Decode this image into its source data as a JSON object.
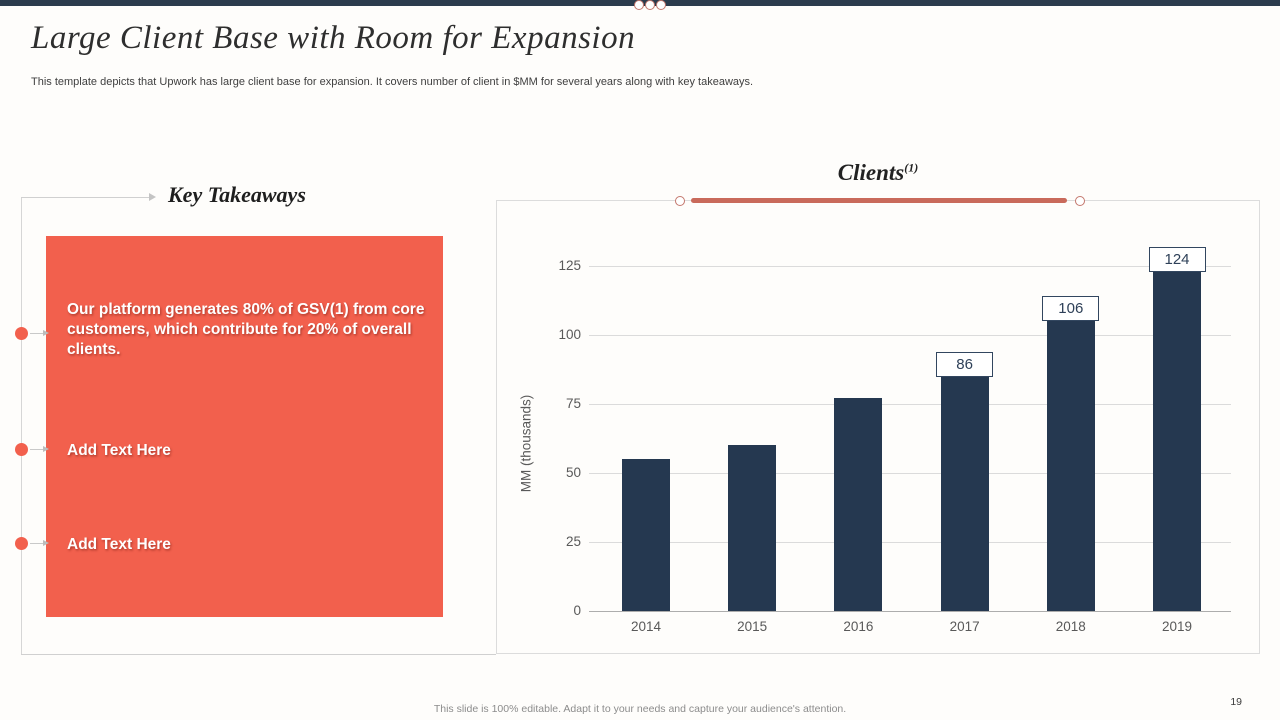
{
  "slide": {
    "title": "Large Client Base with Room for Expansion",
    "subtitle": "This template depicts that Upwork has large client base for expansion. It covers number of client in $MM  for several years along with key takeaways.",
    "footer_note": "This slide is 100% editable.  Adapt it to your needs and capture your audience's attention.",
    "page_number": "19"
  },
  "key_takeaways": {
    "heading": "Key Takeaways",
    "items": [
      {
        "text": "Our platform generates 80% of GSV(1) from core customers, which contribute for 20% of overall clients."
      },
      {
        "text": "Add Text Here"
      },
      {
        "text": "Add Text Here"
      }
    ]
  },
  "chart": {
    "title": "Clients",
    "title_superscript": "(1)"
  },
  "chart_data": {
    "type": "bar",
    "title": "Clients(1)",
    "categories": [
      "2014",
      "2015",
      "2016",
      "2017",
      "2018",
      "2019"
    ],
    "values": [
      55,
      60,
      77,
      86,
      106,
      124
    ],
    "data_labels": [
      null,
      null,
      null,
      "86",
      "106",
      "124"
    ],
    "xlabel": "",
    "ylabel": "MM (thousands)",
    "yticks": [
      0,
      25,
      50,
      75,
      100,
      125
    ],
    "ylim": [
      0,
      130
    ],
    "grid": true,
    "legend": false,
    "bar_color": "#253850"
  },
  "colors": {
    "accent_salmon": "#f2604d",
    "accent_salmon_muted": "#c96a5b",
    "bar_navy": "#253850",
    "top_bar_navy": "#2c3c4d"
  }
}
